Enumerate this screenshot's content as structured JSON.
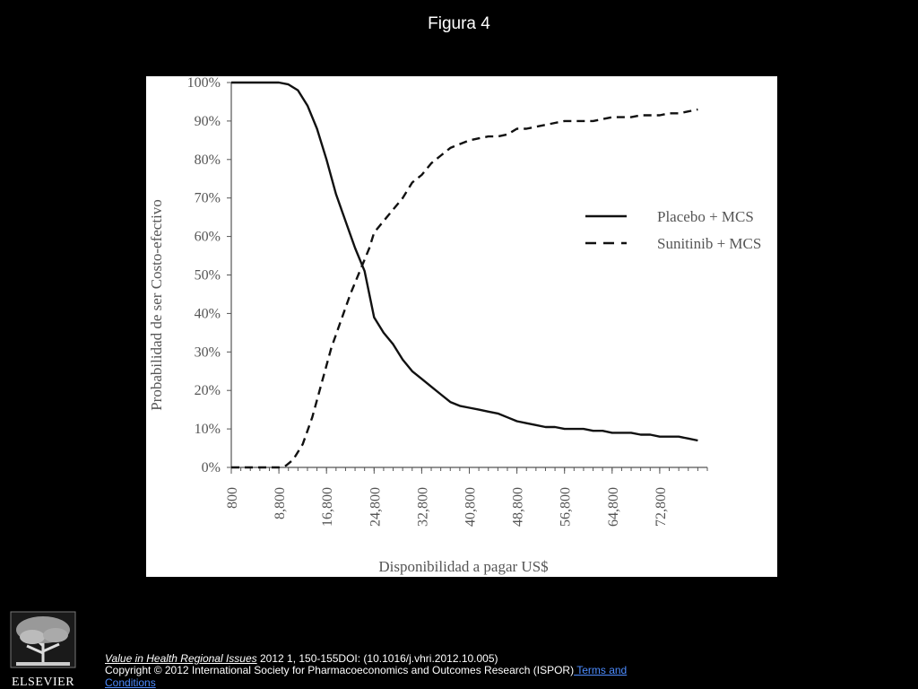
{
  "slide": {
    "title": "Figura 4"
  },
  "chart_data": {
    "type": "line",
    "ylabel": "Probabilidad de ser Costo-efectivo",
    "xlabel": "Disponibilidad a pagar US$",
    "y_ticks": [
      0,
      10,
      20,
      30,
      40,
      50,
      60,
      70,
      80,
      90,
      100
    ],
    "y_tick_labels": [
      "0%",
      "10%",
      "20%",
      "30%",
      "40%",
      "50%",
      "60%",
      "70%",
      "80%",
      "90%",
      "100%"
    ],
    "ylim": [
      0,
      100
    ],
    "xlim": [
      800,
      80800
    ],
    "x_tick_labels": [
      "800",
      "8,800",
      "16,800",
      "24,800",
      "32,800",
      "40,800",
      "48,800",
      "56,800",
      "64,800",
      "72,800"
    ],
    "x_tick_values": [
      800,
      8800,
      16800,
      24800,
      32800,
      40800,
      48800,
      56800,
      64800,
      72800
    ],
    "legend_position": "right",
    "grid": false,
    "series": [
      {
        "name": "Placebo + MCS",
        "style": "solid",
        "color": "#111111",
        "x": [
          800,
          4800,
          8800,
          10400,
          12000,
          13600,
          15200,
          16800,
          18400,
          20000,
          21600,
          23200,
          24800,
          26400,
          28000,
          29600,
          31200,
          32800,
          34400,
          36000,
          37600,
          39200,
          40800,
          42400,
          44000,
          45600,
          47200,
          48800,
          50400,
          52000,
          53600,
          55200,
          56800,
          58400,
          60000,
          61600,
          63200,
          64800,
          66400,
          68000,
          69600,
          71200,
          72800,
          74400,
          76000,
          77600,
          79200
        ],
        "y": [
          100,
          100,
          100,
          99.5,
          98,
          94,
          88,
          80,
          71,
          64,
          57,
          51,
          39,
          35,
          32,
          28,
          25,
          23,
          21,
          19,
          17,
          16,
          15.5,
          15,
          14.5,
          14,
          13,
          12,
          11.5,
          11,
          10.5,
          10.5,
          10,
          10,
          10,
          9.5,
          9.5,
          9,
          9,
          9,
          8.5,
          8.5,
          8,
          8,
          8,
          7.5,
          7
        ]
      },
      {
        "name": "Sunitinib + MCS",
        "style": "dashed",
        "color": "#111111",
        "x": [
          800,
          4800,
          8800,
          10000,
          11200,
          12800,
          14400,
          16000,
          17600,
          19200,
          20800,
          22400,
          24000,
          24800,
          26400,
          28000,
          29600,
          31200,
          32800,
          34400,
          36000,
          37600,
          39200,
          40800,
          42400,
          44000,
          45600,
          47200,
          48800,
          50400,
          52000,
          53600,
          55200,
          56800,
          58400,
          60000,
          61600,
          63200,
          64800,
          66400,
          68000,
          69600,
          71200,
          72800,
          74400,
          76000,
          77600,
          79200
        ],
        "y": [
          0,
          0,
          0,
          0.5,
          2,
          6,
          13,
          22,
          31,
          38,
          45,
          51,
          57,
          61,
          64,
          67,
          70,
          74,
          76,
          79,
          81,
          83,
          84,
          85,
          85.5,
          86,
          86,
          86.5,
          88,
          88,
          88.5,
          89,
          89.5,
          90,
          90,
          90,
          90,
          90.5,
          91,
          91,
          91,
          91.5,
          91.5,
          91.5,
          92,
          92,
          92.5,
          93
        ]
      }
    ]
  },
  "citation": {
    "journal": "Value in Health Regional Issues",
    "details": " 2012 1, 150-155DOI: (10.1016/j.vhri.2012.10.005)"
  },
  "copyright": {
    "text": "Copyright © 2012 International Society for Pharmacoeconomics and Outcomes Research (ISPOR)",
    "link_label": " Terms and Conditions"
  },
  "logo": {
    "label": "ELSEVIER"
  }
}
